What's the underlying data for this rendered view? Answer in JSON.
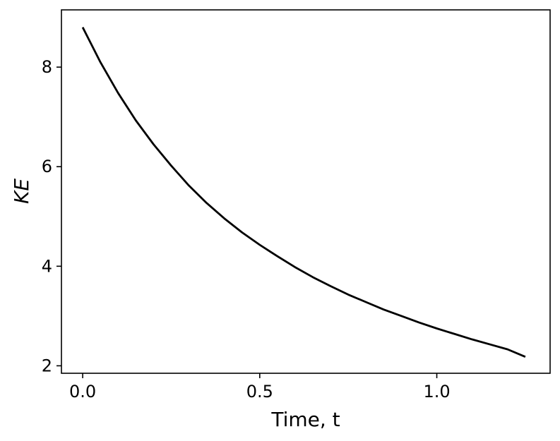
{
  "chart_data": {
    "type": "line",
    "title": "",
    "xlabel": "Time, t",
    "ylabel": "KE",
    "xlim": [
      -0.06,
      1.32
    ],
    "ylim": [
      1.85,
      9.15
    ],
    "xticks": [
      0.0,
      0.5,
      1.0
    ],
    "xtick_labels": [
      "0.0",
      "0.5",
      "1.0"
    ],
    "yticks": [
      2,
      4,
      6,
      8
    ],
    "ytick_labels": [
      "2",
      "4",
      "6",
      "8"
    ],
    "grid": false,
    "legend": "none",
    "line_color": "#000000",
    "series": [
      {
        "x": [
          0.0,
          0.05,
          0.1,
          0.15,
          0.2,
          0.25,
          0.3,
          0.35,
          0.4,
          0.45,
          0.5,
          0.55,
          0.6,
          0.65,
          0.7,
          0.75,
          0.8,
          0.85,
          0.9,
          0.95,
          1.0,
          1.05,
          1.1,
          1.15,
          1.2,
          1.25
        ],
        "y": [
          8.8,
          8.1,
          7.48,
          6.93,
          6.45,
          6.02,
          5.62,
          5.27,
          4.96,
          4.68,
          4.43,
          4.2,
          3.98,
          3.78,
          3.6,
          3.43,
          3.28,
          3.13,
          3.0,
          2.87,
          2.75,
          2.64,
          2.53,
          2.43,
          2.33,
          2.18
        ]
      }
    ]
  }
}
